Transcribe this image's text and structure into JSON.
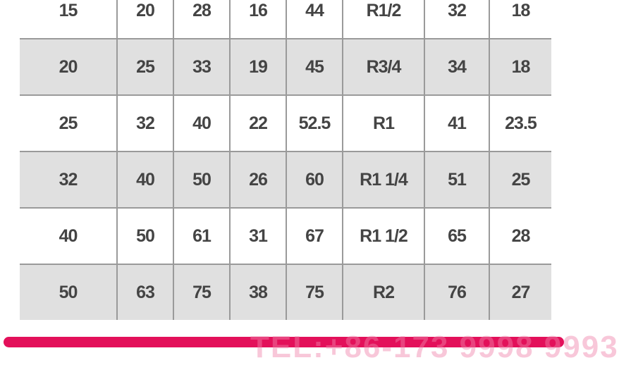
{
  "table": {
    "rows": [
      [
        "15",
        "20",
        "28",
        "16",
        "44",
        "R1/2",
        "32",
        "18"
      ],
      [
        "20",
        "25",
        "33",
        "19",
        "45",
        "R3/4",
        "34",
        "18"
      ],
      [
        "25",
        "32",
        "40",
        "22",
        "52.5",
        "R1",
        "41",
        "23.5"
      ],
      [
        "32",
        "40",
        "50",
        "26",
        "60",
        "R1 1/4",
        "51",
        "25"
      ],
      [
        "40",
        "50",
        "61",
        "31",
        "67",
        "R1 1/2",
        "65",
        "28"
      ],
      [
        "50",
        "63",
        "75",
        "38",
        "75",
        "R2",
        "76",
        "27"
      ]
    ]
  },
  "footer": {
    "watermark": "TEL:+86-173 9998 9993",
    "bar_color": "#e3105a"
  }
}
